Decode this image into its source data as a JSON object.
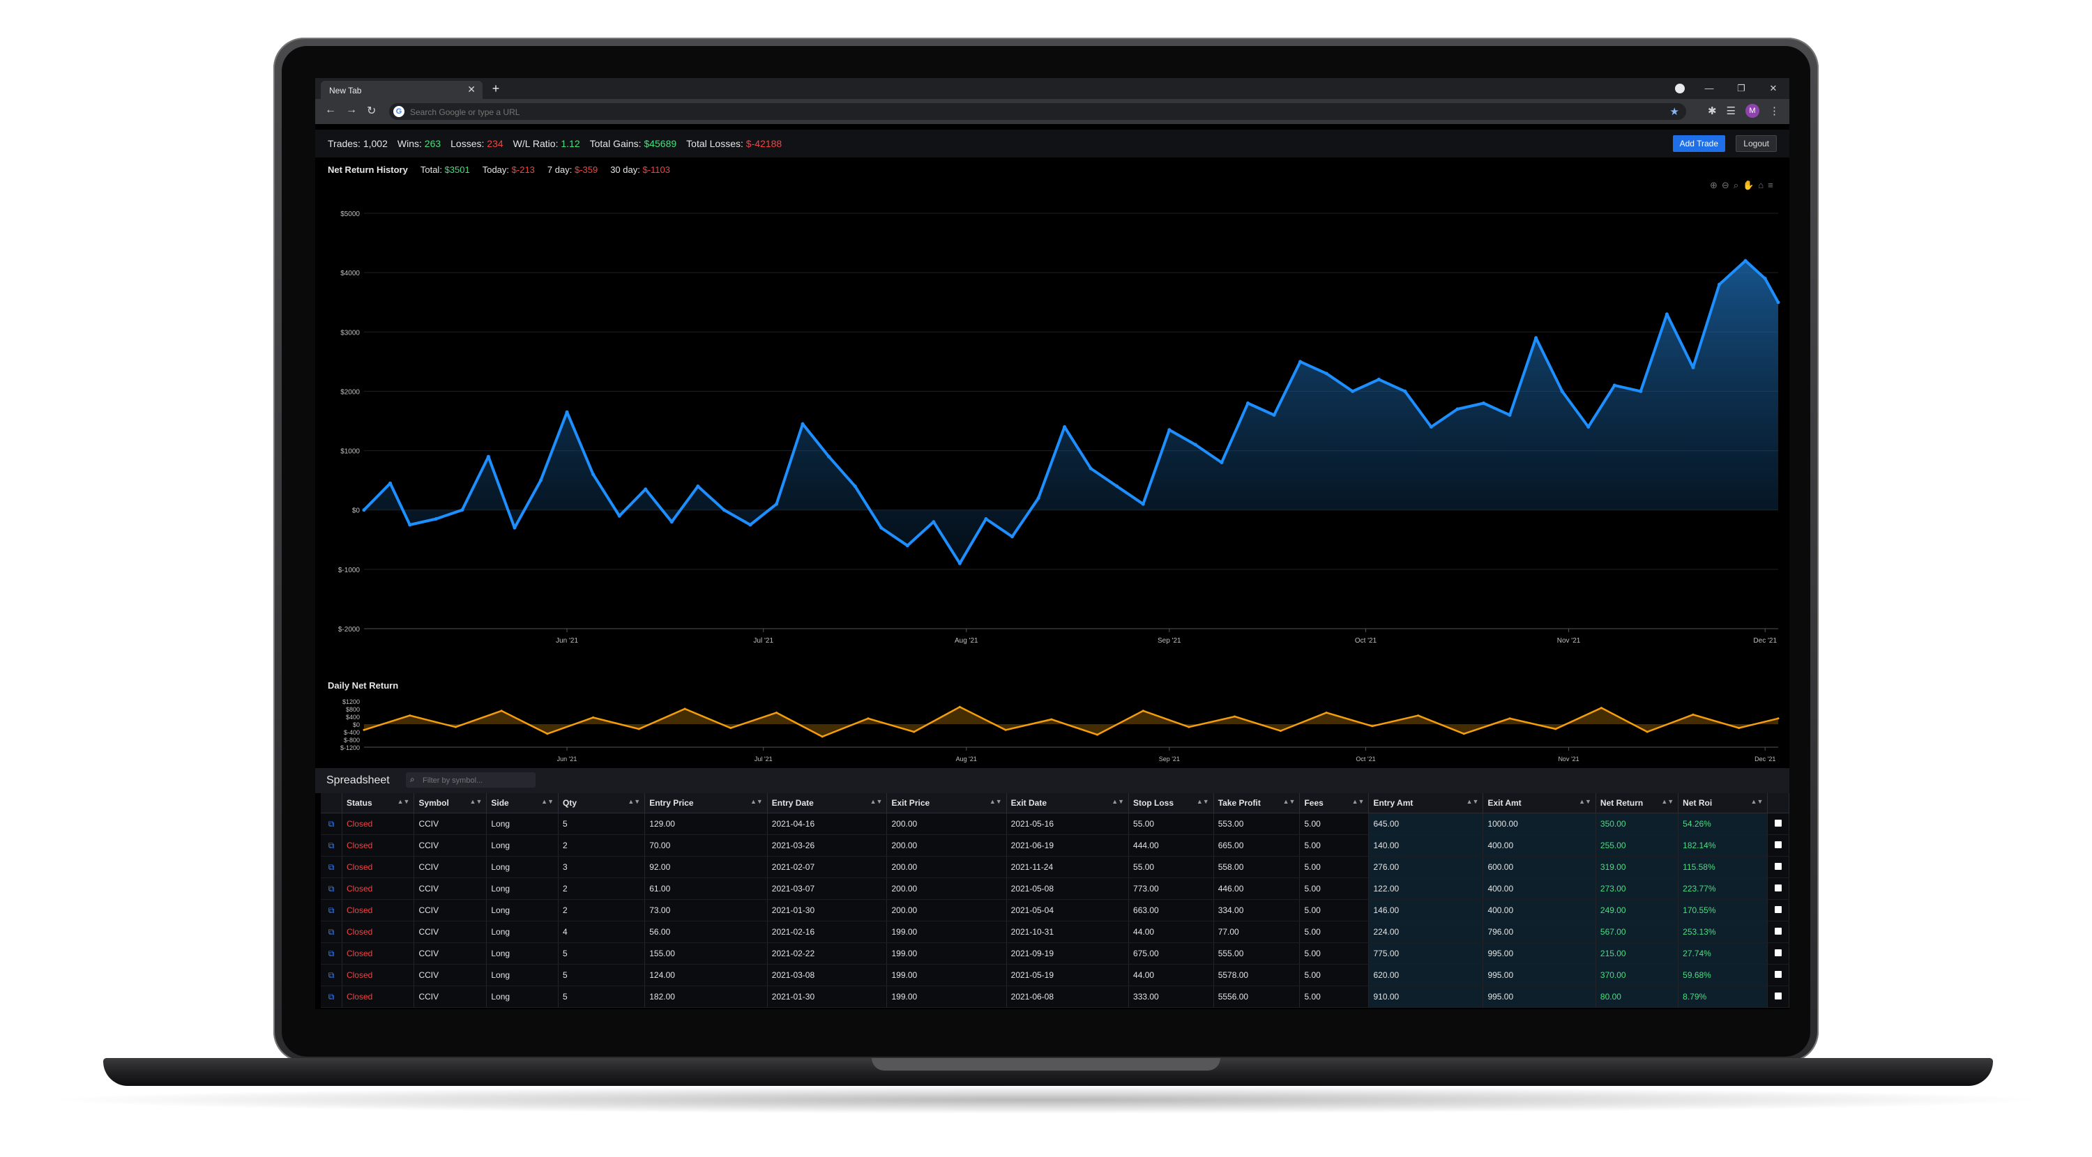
{
  "browser": {
    "tab_title": "New Tab",
    "address_placeholder": "Search Google or type a URL",
    "avatar_letter": "M"
  },
  "stats": {
    "trades_label": "Trades:",
    "trades": "1,002",
    "wins_label": "Wins:",
    "wins": "263",
    "losses_label": "Losses:",
    "losses": "234",
    "wl_label": "W/L Ratio:",
    "wl": "1.12",
    "gains_label": "Total Gains:",
    "gains": "$45689",
    "total_losses_label": "Total Losses:",
    "total_losses": "$-42188",
    "add_trade": "Add Trade",
    "logout": "Logout"
  },
  "net_return": {
    "title": "Net Return History",
    "total_label": "Total:",
    "total": "$3501",
    "today_label": "Today:",
    "today": "$-213",
    "week_label": "7 day:",
    "week": "$-359",
    "month_label": "30 day:",
    "month": "$-1103"
  },
  "daily": {
    "title": "Daily Net Return"
  },
  "chart_data": [
    {
      "type": "area",
      "title": "Net Return History",
      "xlabel": "",
      "ylabel": "",
      "ylim": [
        -2000,
        5000
      ],
      "y_ticks": [
        "$5000",
        "$4000",
        "$3000",
        "$2000",
        "$1000",
        "$0",
        "$-1000",
        "$-2000"
      ],
      "y_tick_values": [
        5000,
        4000,
        3000,
        2000,
        1000,
        0,
        -1000,
        -2000
      ],
      "x_ticks": [
        "Jun '21",
        "Jul '21",
        "Aug '21",
        "Sep '21",
        "Oct '21",
        "Nov '21",
        "Dec '21"
      ],
      "x_range": [
        "2021-05-01",
        "2021-12-03"
      ],
      "color": "#1e8fff",
      "grid": true,
      "x": [
        "2021-05-01",
        "2021-05-05",
        "2021-05-08",
        "2021-05-12",
        "2021-05-16",
        "2021-05-20",
        "2021-05-24",
        "2021-05-28",
        "2021-06-01",
        "2021-06-05",
        "2021-06-09",
        "2021-06-13",
        "2021-06-17",
        "2021-06-21",
        "2021-06-25",
        "2021-06-29",
        "2021-07-03",
        "2021-07-07",
        "2021-07-11",
        "2021-07-15",
        "2021-07-19",
        "2021-07-23",
        "2021-07-27",
        "2021-07-31",
        "2021-08-04",
        "2021-08-08",
        "2021-08-12",
        "2021-08-16",
        "2021-08-20",
        "2021-08-24",
        "2021-08-28",
        "2021-09-01",
        "2021-09-05",
        "2021-09-09",
        "2021-09-13",
        "2021-09-17",
        "2021-09-21",
        "2021-09-25",
        "2021-09-29",
        "2021-10-03",
        "2021-10-07",
        "2021-10-11",
        "2021-10-15",
        "2021-10-19",
        "2021-10-23",
        "2021-10-27",
        "2021-10-31",
        "2021-11-04",
        "2021-11-08",
        "2021-11-12",
        "2021-11-16",
        "2021-11-20",
        "2021-11-24",
        "2021-11-28",
        "2021-12-01",
        "2021-12-03"
      ],
      "y": [
        0,
        450,
        -250,
        -150,
        0,
        900,
        -300,
        500,
        1650,
        600,
        -100,
        350,
        -200,
        400,
        0,
        -250,
        100,
        1450,
        900,
        400,
        -300,
        -600,
        -200,
        -900,
        -150,
        -450,
        200,
        1400,
        700,
        400,
        100,
        1350,
        1100,
        800,
        1800,
        1600,
        2500,
        2300,
        2000,
        2200,
        2000,
        1400,
        1700,
        1800,
        1600,
        2900,
        2000,
        1400,
        2100,
        2000,
        3300,
        2400,
        3800,
        4200,
        3900,
        3500
      ]
    },
    {
      "type": "line",
      "title": "Daily Net Return",
      "xlabel": "",
      "ylabel": "",
      "ylim": [
        -1200,
        1200
      ],
      "y_ticks": [
        "$1200",
        "$800",
        "$400",
        "$0",
        "$-400",
        "$-800",
        "$-1200"
      ],
      "y_tick_values": [
        1200,
        800,
        400,
        0,
        -400,
        -800,
        -1200
      ],
      "x_ticks": [
        "Jun '21",
        "Jul '21",
        "Aug '21",
        "Sep '21",
        "Oct '21",
        "Nov '21",
        "Dec '21"
      ],
      "x_range": [
        "2021-05-01",
        "2021-12-03"
      ],
      "color": "#f59e0b",
      "x": [
        "2021-05-01",
        "2021-05-08",
        "2021-05-15",
        "2021-05-22",
        "2021-05-29",
        "2021-06-05",
        "2021-06-12",
        "2021-06-19",
        "2021-06-26",
        "2021-07-03",
        "2021-07-10",
        "2021-07-17",
        "2021-07-24",
        "2021-07-31",
        "2021-08-07",
        "2021-08-14",
        "2021-08-21",
        "2021-08-28",
        "2021-09-04",
        "2021-09-11",
        "2021-09-18",
        "2021-09-25",
        "2021-10-02",
        "2021-10-09",
        "2021-10-16",
        "2021-10-23",
        "2021-10-30",
        "2021-11-06",
        "2021-11-13",
        "2021-11-20",
        "2021-11-27",
        "2021-12-03"
      ],
      "y": [
        -300,
        450,
        -150,
        700,
        -500,
        350,
        -250,
        800,
        -200,
        600,
        -650,
        300,
        -400,
        900,
        -300,
        250,
        -550,
        700,
        -150,
        400,
        -350,
        600,
        -100,
        450,
        -500,
        300,
        -250,
        850,
        -400,
        500,
        -200,
        300
      ]
    }
  ],
  "spreadsheet": {
    "title": "Spreadsheet",
    "filter_placeholder": "Filter by symbol...",
    "columns": [
      "Status",
      "Symbol",
      "Side",
      "Qty",
      "Entry Price",
      "Entry Date",
      "Exit Price",
      "Exit Date",
      "Stop Loss",
      "Take Profit",
      "Fees",
      "Entry Amt",
      "Exit Amt",
      "Net Return",
      "Net Roi"
    ],
    "rows": [
      [
        "Closed",
        "CCIV",
        "Long",
        "5",
        "129.00",
        "2021-04-16",
        "200.00",
        "2021-05-16",
        "55.00",
        "553.00",
        "5.00",
        "645.00",
        "1000.00",
        "350.00",
        "54.26%"
      ],
      [
        "Closed",
        "CCIV",
        "Long",
        "2",
        "70.00",
        "2021-03-26",
        "200.00",
        "2021-06-19",
        "444.00",
        "665.00",
        "5.00",
        "140.00",
        "400.00",
        "255.00",
        "182.14%"
      ],
      [
        "Closed",
        "CCIV",
        "Long",
        "3",
        "92.00",
        "2021-02-07",
        "200.00",
        "2021-11-24",
        "55.00",
        "558.00",
        "5.00",
        "276.00",
        "600.00",
        "319.00",
        "115.58%"
      ],
      [
        "Closed",
        "CCIV",
        "Long",
        "2",
        "61.00",
        "2021-03-07",
        "200.00",
        "2021-05-08",
        "773.00",
        "446.00",
        "5.00",
        "122.00",
        "400.00",
        "273.00",
        "223.77%"
      ],
      [
        "Closed",
        "CCIV",
        "Long",
        "2",
        "73.00",
        "2021-01-30",
        "200.00",
        "2021-05-04",
        "663.00",
        "334.00",
        "5.00",
        "146.00",
        "400.00",
        "249.00",
        "170.55%"
      ],
      [
        "Closed",
        "CCIV",
        "Long",
        "4",
        "56.00",
        "2021-02-16",
        "199.00",
        "2021-10-31",
        "44.00",
        "77.00",
        "5.00",
        "224.00",
        "796.00",
        "567.00",
        "253.13%"
      ],
      [
        "Closed",
        "CCIV",
        "Long",
        "5",
        "155.00",
        "2021-02-22",
        "199.00",
        "2021-09-19",
        "675.00",
        "555.00",
        "5.00",
        "775.00",
        "995.00",
        "215.00",
        "27.74%"
      ],
      [
        "Closed",
        "CCIV",
        "Long",
        "5",
        "124.00",
        "2021-03-08",
        "199.00",
        "2021-05-19",
        "44.00",
        "5578.00",
        "5.00",
        "620.00",
        "995.00",
        "370.00",
        "59.68%"
      ],
      [
        "Closed",
        "CCIV",
        "Long",
        "5",
        "182.00",
        "2021-01-30",
        "199.00",
        "2021-06-08",
        "333.00",
        "5556.00",
        "5.00",
        "910.00",
        "995.00",
        "80.00",
        "8.79%"
      ]
    ]
  }
}
